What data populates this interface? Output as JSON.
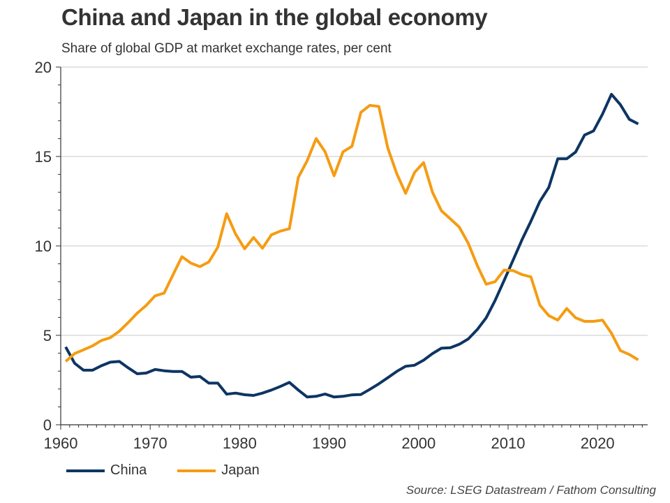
{
  "header": {
    "title": "China and Japan in the global economy",
    "subtitle": "Share of global GDP at market exchange rates, per cent"
  },
  "source": "Source: LSEG Datastream / Fathom Consulting",
  "chart_data": {
    "type": "line",
    "title": "China and Japan in the global economy",
    "subtitle": "Share of global GDP at market exchange rates, per cent",
    "xlabel": "",
    "ylabel": "",
    "xlim": [
      1960,
      2025.6
    ],
    "ylim": [
      0,
      20
    ],
    "x_ticks": [
      1960,
      1970,
      1980,
      1990,
      2000,
      2010,
      2020
    ],
    "x_tick_labels": [
      "1960",
      "1970",
      "1980",
      "1990",
      "2000",
      "2010",
      "2020"
    ],
    "y_ticks": [
      0,
      5,
      10,
      15,
      20
    ],
    "y_tick_labels": [
      "0",
      "5",
      "10",
      "15",
      "20"
    ],
    "grid": "horizontal",
    "legend_position": "bottom-left",
    "x": [
      1960,
      1961,
      1962,
      1963,
      1964,
      1965,
      1966,
      1967,
      1968,
      1969,
      1970,
      1971,
      1972,
      1973,
      1974,
      1975,
      1976,
      1977,
      1978,
      1979,
      1980,
      1981,
      1982,
      1983,
      1984,
      1985,
      1986,
      1987,
      1988,
      1989,
      1990,
      1991,
      1992,
      1993,
      1994,
      1995,
      1996,
      1997,
      1998,
      1999,
      2000,
      2001,
      2002,
      2003,
      2004,
      2005,
      2006,
      2007,
      2008,
      2009,
      2010,
      2011,
      2012,
      2013,
      2014,
      2015,
      2016,
      2017,
      2018,
      2019,
      2020,
      2021,
      2022,
      2023,
      2024
    ],
    "series": [
      {
        "name": "China",
        "color": "#0d3563",
        "values": [
          4.35,
          3.44,
          3.05,
          3.05,
          3.3,
          3.5,
          3.54,
          3.18,
          2.85,
          2.89,
          3.09,
          3.02,
          2.98,
          2.98,
          2.66,
          2.7,
          2.33,
          2.33,
          1.71,
          1.77,
          1.68,
          1.64,
          1.77,
          1.94,
          2.14,
          2.37,
          1.94,
          1.55,
          1.59,
          1.72,
          1.55,
          1.59,
          1.67,
          1.69,
          1.98,
          2.29,
          2.63,
          2.98,
          3.27,
          3.33,
          3.61,
          3.98,
          4.28,
          4.31,
          4.5,
          4.8,
          5.32,
          5.98,
          6.95,
          8.06,
          9.2,
          10.34,
          11.38,
          12.49,
          13.27,
          14.87,
          14.87,
          15.25,
          16.2,
          16.43,
          17.37,
          18.48,
          17.9,
          17.08,
          16.82
        ]
      },
      {
        "name": "Japan",
        "color": "#f59c13",
        "values": [
          3.54,
          3.98,
          4.19,
          4.41,
          4.71,
          4.87,
          5.23,
          5.72,
          6.24,
          6.67,
          7.21,
          7.36,
          8.39,
          9.4,
          9.04,
          8.84,
          9.1,
          9.92,
          11.8,
          10.66,
          9.84,
          10.47,
          9.87,
          10.62,
          10.83,
          10.96,
          13.83,
          14.77,
          16.0,
          15.26,
          13.92,
          15.26,
          15.57,
          17.47,
          17.86,
          17.8,
          15.48,
          14.05,
          12.94,
          14.11,
          14.66,
          13.0,
          11.96,
          11.51,
          11.05,
          10.14,
          8.91,
          7.86,
          8.0,
          8.65,
          8.62,
          8.4,
          8.27,
          6.69,
          6.1,
          5.85,
          6.5,
          5.98,
          5.78,
          5.78,
          5.85,
          5.12,
          4.15,
          3.93,
          3.63
        ]
      }
    ]
  }
}
